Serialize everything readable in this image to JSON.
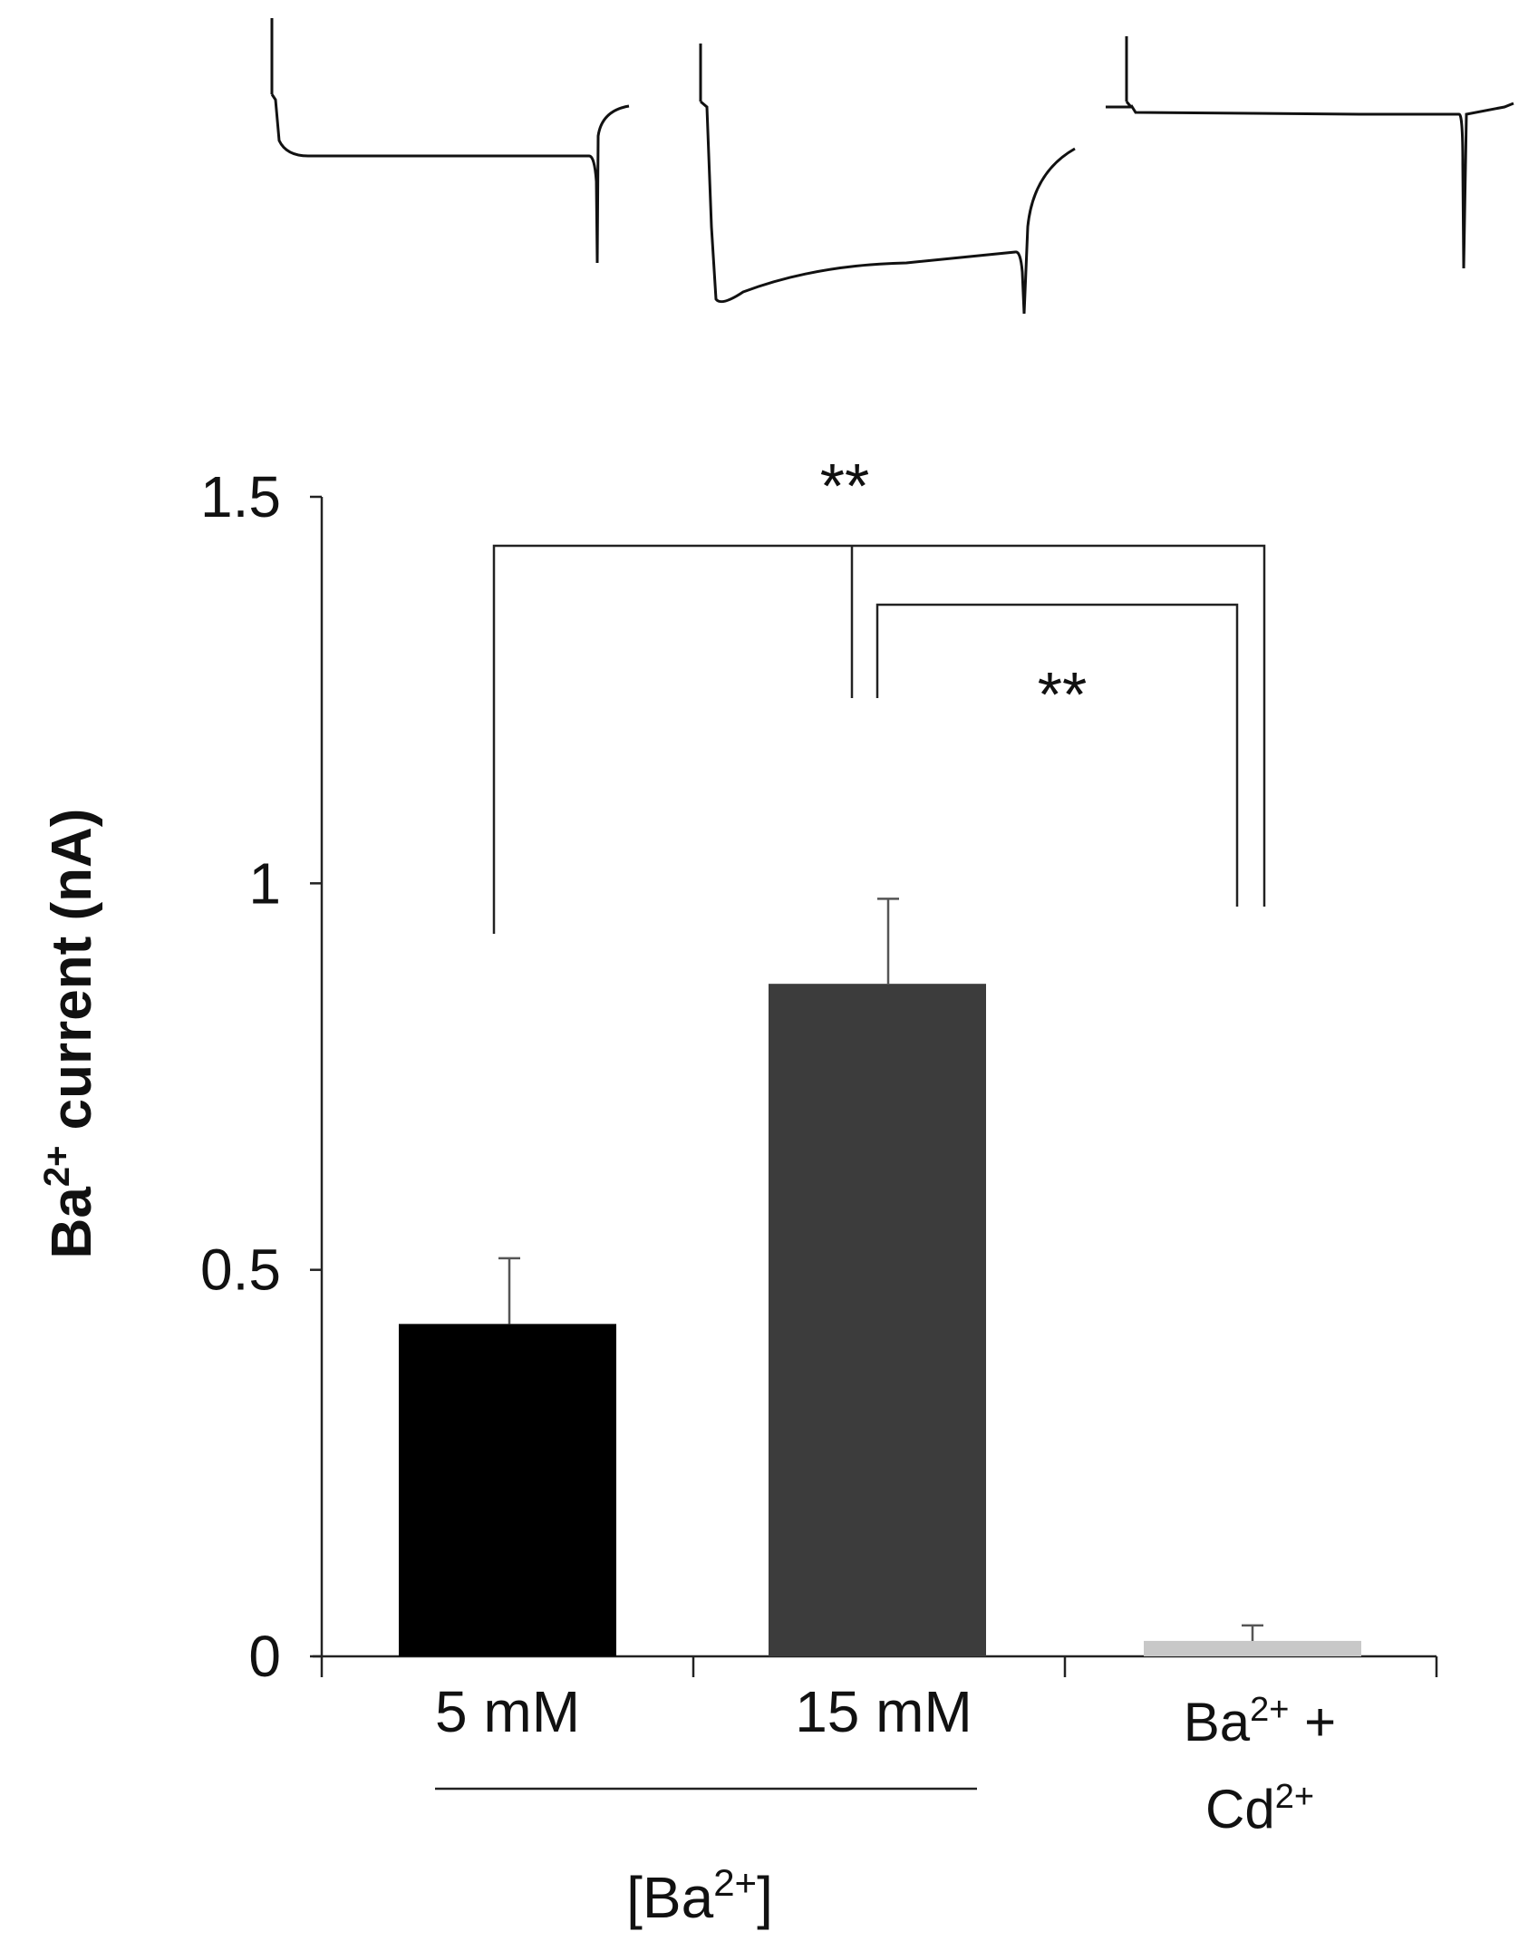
{
  "chart_data": {
    "type": "bar",
    "ylabel": "Ba2+ current (nA)",
    "ylabel_parts": {
      "base": "Ba",
      "sup": "2+",
      "rest": " current (nA)"
    },
    "ylim": [
      0,
      1.5
    ],
    "yticks": [
      "0",
      "0.5",
      "1",
      "1.5"
    ],
    "grid": false,
    "legend": "none",
    "categories": [
      "5 mM",
      "15 mM",
      "Ba2+ + Cd2+"
    ],
    "category_labels": {
      "c0": "5 mM",
      "c1": "15 mM",
      "c2_line1_base": "Ba",
      "c2_line1_sup": "2+",
      "c2_line1_rest": " +",
      "c2_line2_base": "Cd",
      "c2_line2_sup": "2+"
    },
    "values": [
      0.43,
      0.87,
      0.02
    ],
    "errors": [
      0.085,
      0.11,
      0.02
    ],
    "colors": [
      "#000000",
      "#3c3c3c",
      "#c8c8c8"
    ],
    "group_label": {
      "base": "[Ba",
      "sup": "2+",
      "rest": "]"
    },
    "significance": [
      {
        "label": "**",
        "between": [
          "5 mM",
          "Ba2+ + Cd2+"
        ]
      },
      {
        "label": "**",
        "between": [
          "15 mM",
          "Ba2+ + Cd2+"
        ]
      }
    ]
  },
  "traces": {
    "description_names": [
      "5 mM",
      "15 mM",
      "Ba2+ + Cd2+"
    ]
  }
}
